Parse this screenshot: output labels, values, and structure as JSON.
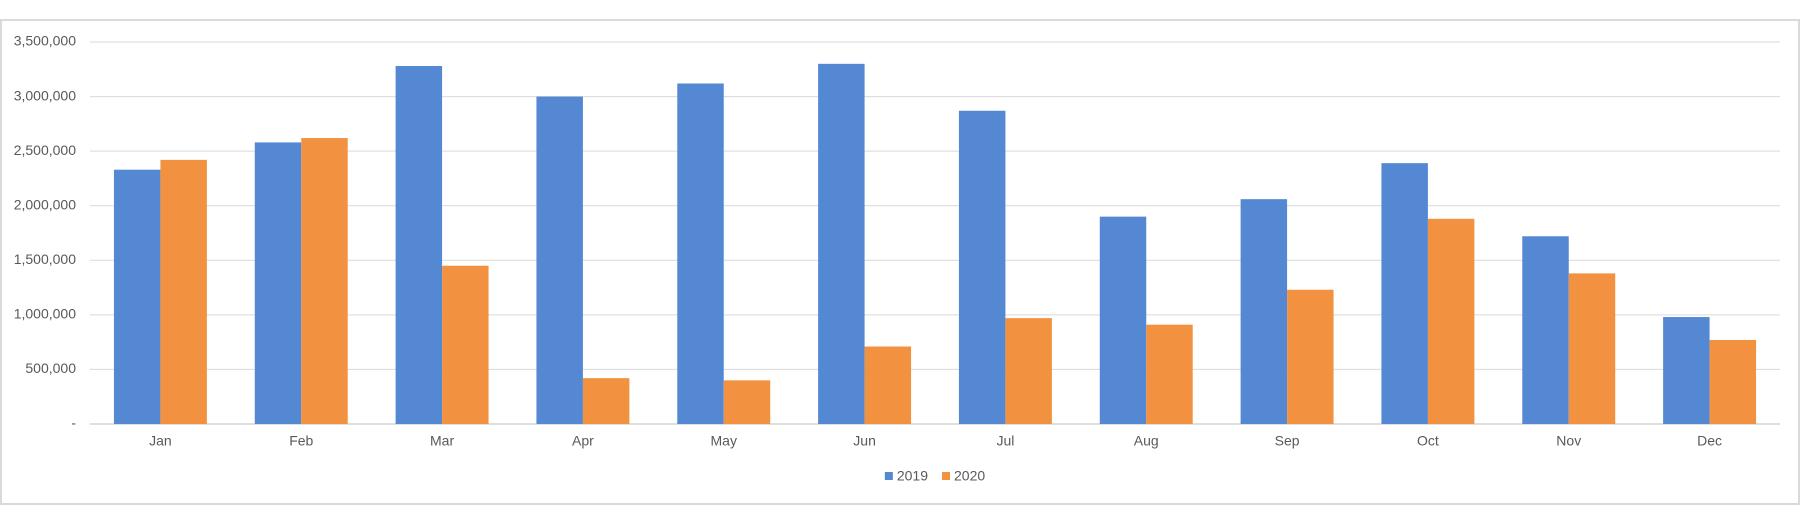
{
  "chart_data": {
    "type": "bar",
    "categories": [
      "Jan",
      "Feb",
      "Mar",
      "Apr",
      "May",
      "Jun",
      "Jul",
      "Aug",
      "Sep",
      "Oct",
      "Nov",
      "Dec"
    ],
    "series": [
      {
        "name": "2019",
        "color": "#5588d3",
        "values": [
          2330000,
          2580000,
          3280000,
          3000000,
          3120000,
          3300000,
          2870000,
          1900000,
          2060000,
          2390000,
          1720000,
          980000
        ]
      },
      {
        "name": "2020",
        "color": "#f29241",
        "values": [
          2420000,
          2620000,
          1450000,
          420000,
          400000,
          710000,
          970000,
          910000,
          1230000,
          1880000,
          1380000,
          770000
        ]
      }
    ],
    "ylim": [
      0,
      3500000
    ],
    "yticks": [
      {
        "value": 0,
        "label": "-"
      },
      {
        "value": 500000,
        "label": "500,000"
      },
      {
        "value": 1000000,
        "label": "1,000,000"
      },
      {
        "value": 1500000,
        "label": "1,500,000"
      },
      {
        "value": 2000000,
        "label": "2,000,000"
      },
      {
        "value": 2500000,
        "label": "2,500,000"
      },
      {
        "value": 3000000,
        "label": "3,000,000"
      },
      {
        "value": 3500000,
        "label": "3,500,000"
      }
    ],
    "grid": true,
    "legend": "bottom"
  }
}
